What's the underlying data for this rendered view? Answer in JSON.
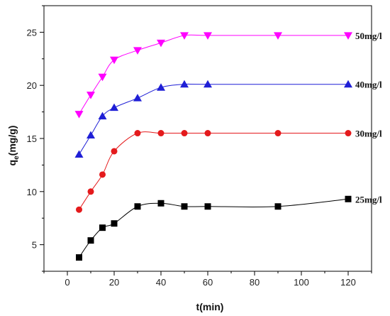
{
  "chart_data": {
    "type": "line",
    "xlabel": "t(min)",
    "ylabel": {
      "main": "q",
      "sub": "e",
      "unit": "(mg/g)"
    },
    "xlim": [
      -10,
      130
    ],
    "ylim": [
      2.5,
      27.5
    ],
    "xticks": [
      0,
      20,
      40,
      60,
      80,
      100,
      120
    ],
    "yticks": [
      5,
      10,
      15,
      20,
      25
    ],
    "grid": false,
    "series": [
      {
        "name": "25mg/l",
        "marker": "square",
        "color": "#000000",
        "x": [
          5,
          10,
          15,
          20,
          30,
          40,
          50,
          60,
          90,
          120
        ],
        "y": [
          3.8,
          5.4,
          6.6,
          7.0,
          8.6,
          8.9,
          8.6,
          8.6,
          8.6,
          9.3
        ]
      },
      {
        "name": "30mg/l",
        "marker": "circle",
        "color": "#e41a1c",
        "x": [
          5,
          10,
          15,
          20,
          30,
          40,
          50,
          60,
          90,
          120
        ],
        "y": [
          8.3,
          10.0,
          11.6,
          13.8,
          15.5,
          15.5,
          15.5,
          15.5,
          15.5,
          15.5
        ]
      },
      {
        "name": "40mg/l",
        "marker": "triangle-up",
        "color": "#1f1fd6",
        "x": [
          5,
          10,
          15,
          20,
          30,
          40,
          50,
          60,
          120
        ],
        "y": [
          13.5,
          15.3,
          17.1,
          17.9,
          18.8,
          19.8,
          20.1,
          20.1,
          20.1
        ]
      },
      {
        "name": "50mg/l",
        "marker": "triangle-down",
        "color": "#ff00ff",
        "x": [
          5,
          10,
          15,
          20,
          30,
          40,
          50,
          60,
          90,
          120
        ],
        "y": [
          17.3,
          19.1,
          20.8,
          22.4,
          23.3,
          24.0,
          24.7,
          24.7,
          24.7,
          24.7
        ]
      }
    ]
  }
}
